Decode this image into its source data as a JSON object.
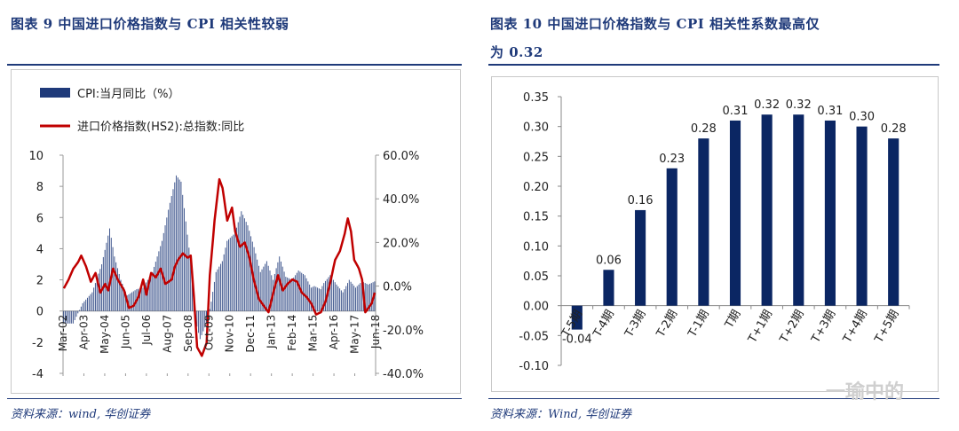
{
  "left": {
    "title": "图表 9 中国进口价格指数与 CPI 相关性较弱",
    "source": "资料来源：wind, 华创证券"
  },
  "right": {
    "title_line1": "图表 10 中国进口价格指数与 CPI 相关性系数最高仅",
    "title_line2": "为 0.32",
    "source": "资料来源：Wind, 华创证券"
  },
  "watermark": "一瑜中的",
  "chart_data": [
    {
      "type": "bar",
      "legend_position": "top-left",
      "series": [
        {
          "name": "CPI:当月同比（%）",
          "kind": "bar",
          "axis": "left",
          "color": "#1f3a7a",
          "x_start": "2002-03",
          "x_end": "2018-06",
          "knots": [
            [
              0,
              -0.8
            ],
            [
              6,
              -0.8
            ],
            [
              12,
              0.5
            ],
            [
              18,
              1.2
            ],
            [
              24,
              3.0
            ],
            [
              29,
              5.3
            ],
            [
              32,
              3.5
            ],
            [
              36,
              2.0
            ],
            [
              40,
              1.0
            ],
            [
              46,
              1.4
            ],
            [
              50,
              1.5
            ],
            [
              56,
              2.5
            ],
            [
              62,
              4.5
            ],
            [
              66,
              6.5
            ],
            [
              71,
              8.7
            ],
            [
              74,
              8.3
            ],
            [
              78,
              4.9
            ],
            [
              81,
              2.4
            ],
            [
              84,
              -1.0
            ],
            [
              86,
              -1.8
            ],
            [
              90,
              -0.8
            ],
            [
              93,
              0.6
            ],
            [
              96,
              2.5
            ],
            [
              100,
              3.2
            ],
            [
              103,
              4.5
            ],
            [
              108,
              5.0
            ],
            [
              112,
              6.4
            ],
            [
              116,
              5.5
            ],
            [
              120,
              4.1
            ],
            [
              124,
              2.5
            ],
            [
              128,
              3.2
            ],
            [
              132,
              2.0
            ],
            [
              136,
              3.5
            ],
            [
              140,
              2.2
            ],
            [
              144,
              2.0
            ],
            [
              148,
              2.6
            ],
            [
              152,
              2.3
            ],
            [
              156,
              1.5
            ],
            [
              158,
              1.6
            ],
            [
              162,
              1.4
            ],
            [
              164,
              1.8
            ],
            [
              168,
              2.3
            ],
            [
              172,
              1.7
            ],
            [
              176,
              1.2
            ],
            [
              180,
              2.0
            ],
            [
              184,
              1.5
            ],
            [
              188,
              1.9
            ],
            [
              192,
              1.7
            ],
            [
              196,
              1.9
            ]
          ]
        },
        {
          "name": "进口价格指数(HS2):总指数:同比",
          "kind": "line",
          "axis": "right",
          "color": "#c00000",
          "knots": [
            [
              0,
              -1
            ],
            [
              3,
              3
            ],
            [
              6,
              8
            ],
            [
              9,
              11
            ],
            [
              11,
              14
            ],
            [
              14,
              9
            ],
            [
              17,
              2
            ],
            [
              20,
              6
            ],
            [
              23,
              -3
            ],
            [
              26,
              1
            ],
            [
              28,
              -2
            ],
            [
              31,
              8
            ],
            [
              34,
              3
            ],
            [
              38,
              -2
            ],
            [
              41,
              -10
            ],
            [
              44,
              -9
            ],
            [
              47,
              -5
            ],
            [
              50,
              3
            ],
            [
              52,
              -4
            ],
            [
              55,
              6
            ],
            [
              58,
              4
            ],
            [
              61,
              8
            ],
            [
              64,
              1
            ],
            [
              68,
              3
            ],
            [
              70,
              9
            ],
            [
              72,
              12
            ],
            [
              75,
              15
            ],
            [
              78,
              13
            ],
            [
              80,
              14
            ],
            [
              82,
              -5
            ],
            [
              84,
              -28
            ],
            [
              87,
              -32
            ],
            [
              90,
              -26
            ],
            [
              92,
              5
            ],
            [
              95,
              30
            ],
            [
              98,
              49
            ],
            [
              100,
              45
            ],
            [
              103,
              30
            ],
            [
              106,
              36
            ],
            [
              108,
              25
            ],
            [
              111,
              18
            ],
            [
              114,
              20
            ],
            [
              117,
              13
            ],
            [
              120,
              2
            ],
            [
              123,
              -6
            ],
            [
              126,
              -9
            ],
            [
              129,
              -12
            ],
            [
              132,
              -3
            ],
            [
              135,
              5
            ],
            [
              138,
              -2
            ],
            [
              141,
              1
            ],
            [
              144,
              3
            ],
            [
              147,
              2
            ],
            [
              150,
              -3
            ],
            [
              153,
              -5
            ],
            [
              156,
              -8
            ],
            [
              159,
              -13
            ],
            [
              162,
              -12
            ],
            [
              165,
              -7
            ],
            [
              168,
              2
            ],
            [
              171,
              12
            ],
            [
              174,
              16
            ],
            [
              177,
              24
            ],
            [
              179,
              31
            ],
            [
              181,
              25
            ],
            [
              183,
              12
            ],
            [
              186,
              8
            ],
            [
              188,
              3
            ],
            [
              190,
              -12
            ],
            [
              192,
              -10
            ],
            [
              194,
              -8
            ],
            [
              196,
              -3
            ]
          ]
        }
      ],
      "y_left": {
        "min": -4,
        "max": 10,
        "ticks": [
          -4,
          -2,
          0,
          2,
          4,
          6,
          8,
          10
        ]
      },
      "y_right": {
        "min": -40,
        "max": 60,
        "ticks": [
          "-40.0%",
          "-20.0%",
          "0.0%",
          "20.0%",
          "40.0%",
          "60.0%"
        ]
      },
      "x_ticks": [
        "Mar-02",
        "Apr-03",
        "May-04",
        "Jun-05",
        "Jul-06",
        "Aug-07",
        "Sep-08",
        "Oct-09",
        "Nov-10",
        "Dec-11",
        "Jan-13",
        "Feb-14",
        "Mar-15",
        "Apr-16",
        "May-17",
        "Jun-18"
      ]
    },
    {
      "type": "bar",
      "color": "#0b2663",
      "categories": [
        "T-5期",
        "T-4期",
        "T-3期",
        "T-2期",
        "T-1期",
        "T期",
        "T+1期",
        "T+2期",
        "T+3期",
        "T+4期",
        "T+5期"
      ],
      "values": [
        -0.04,
        0.06,
        0.16,
        0.23,
        0.28,
        0.31,
        0.32,
        0.32,
        0.31,
        0.3,
        0.28
      ],
      "data_labels": [
        "-0.04",
        "0.06",
        "0.16",
        "0.23",
        "0.28",
        "0.31",
        "0.32",
        "0.32",
        "0.31",
        "0.30",
        "0.28"
      ],
      "y_ticks": [
        "0.35",
        "0.30",
        "0.25",
        "0.20",
        "0.15",
        "0.10",
        "0.05",
        "0.00",
        "-0.05",
        "-0.10"
      ],
      "ylim": [
        -0.1,
        0.35
      ]
    }
  ]
}
